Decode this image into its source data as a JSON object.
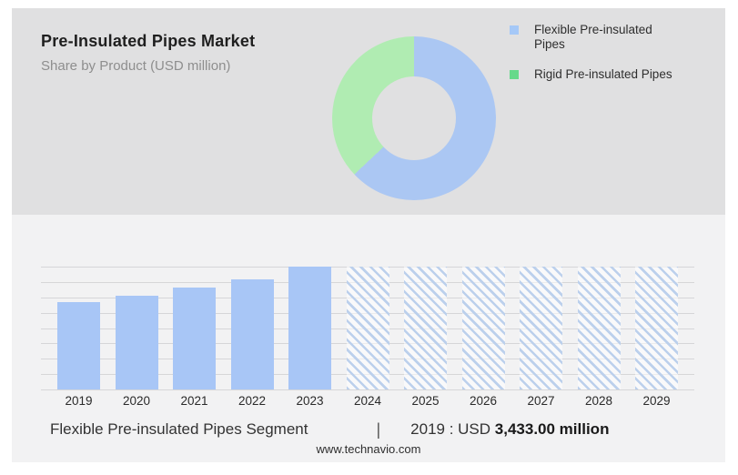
{
  "header": {
    "title": "Pre-Insulated Pipes Market",
    "subtitle": "Share by Product (USD million)"
  },
  "legend": {
    "items": [
      {
        "label": "Flexible Pre-insulated Pipes",
        "color": "#a5c8f7"
      },
      {
        "label": "Rigid Pre-insulated Pipes",
        "color": "#66d98a"
      }
    ]
  },
  "footer": {
    "segment_label": "Flexible Pre-insulated Pipes Segment",
    "divider": "|",
    "value_prefix": "2019 : USD ",
    "value_bold": "3,433.00 million",
    "website": "www.technavio.com"
  },
  "chart_data": [
    {
      "type": "pie",
      "subtype": "donut",
      "title": "Share by Product (USD million)",
      "legend_position": "right",
      "segments": [
        {
          "label": "Flexible Pre-insulated Pipes",
          "value_pct": 63,
          "color": "#abc7f3"
        },
        {
          "label": "Rigid Pre-insulated Pipes",
          "value_pct": 37,
          "color": "#b0ecb2"
        }
      ]
    },
    {
      "type": "bar",
      "title": "Flexible Pre-insulated Pipes Segment (USD million)",
      "categories": [
        "2019",
        "2020",
        "2021",
        "2022",
        "2023",
        "2024",
        "2025",
        "2026",
        "2027",
        "2028",
        "2029"
      ],
      "values": [
        3433,
        3650,
        4010,
        4365,
        4830,
        null,
        null,
        null,
        null,
        null,
        null
      ],
      "heights_pct": [
        71,
        76,
        83,
        90,
        100,
        100,
        100,
        100,
        100,
        100,
        100
      ],
      "labeled_value": "2019 : USD 3,433.00 million",
      "note": "Only 2019 value is labeled; 2020-2023 estimated from bar heights; 2024-2029 are forecast years drawn as full-height hatched placeholder bars",
      "forecast_from": "2024",
      "bar_color": "#a8c6f6",
      "forecast_hatch_color": "#bcd0ec",
      "grid": true,
      "gridline_count": 9,
      "xlabel": "",
      "ylabel": ""
    }
  ]
}
